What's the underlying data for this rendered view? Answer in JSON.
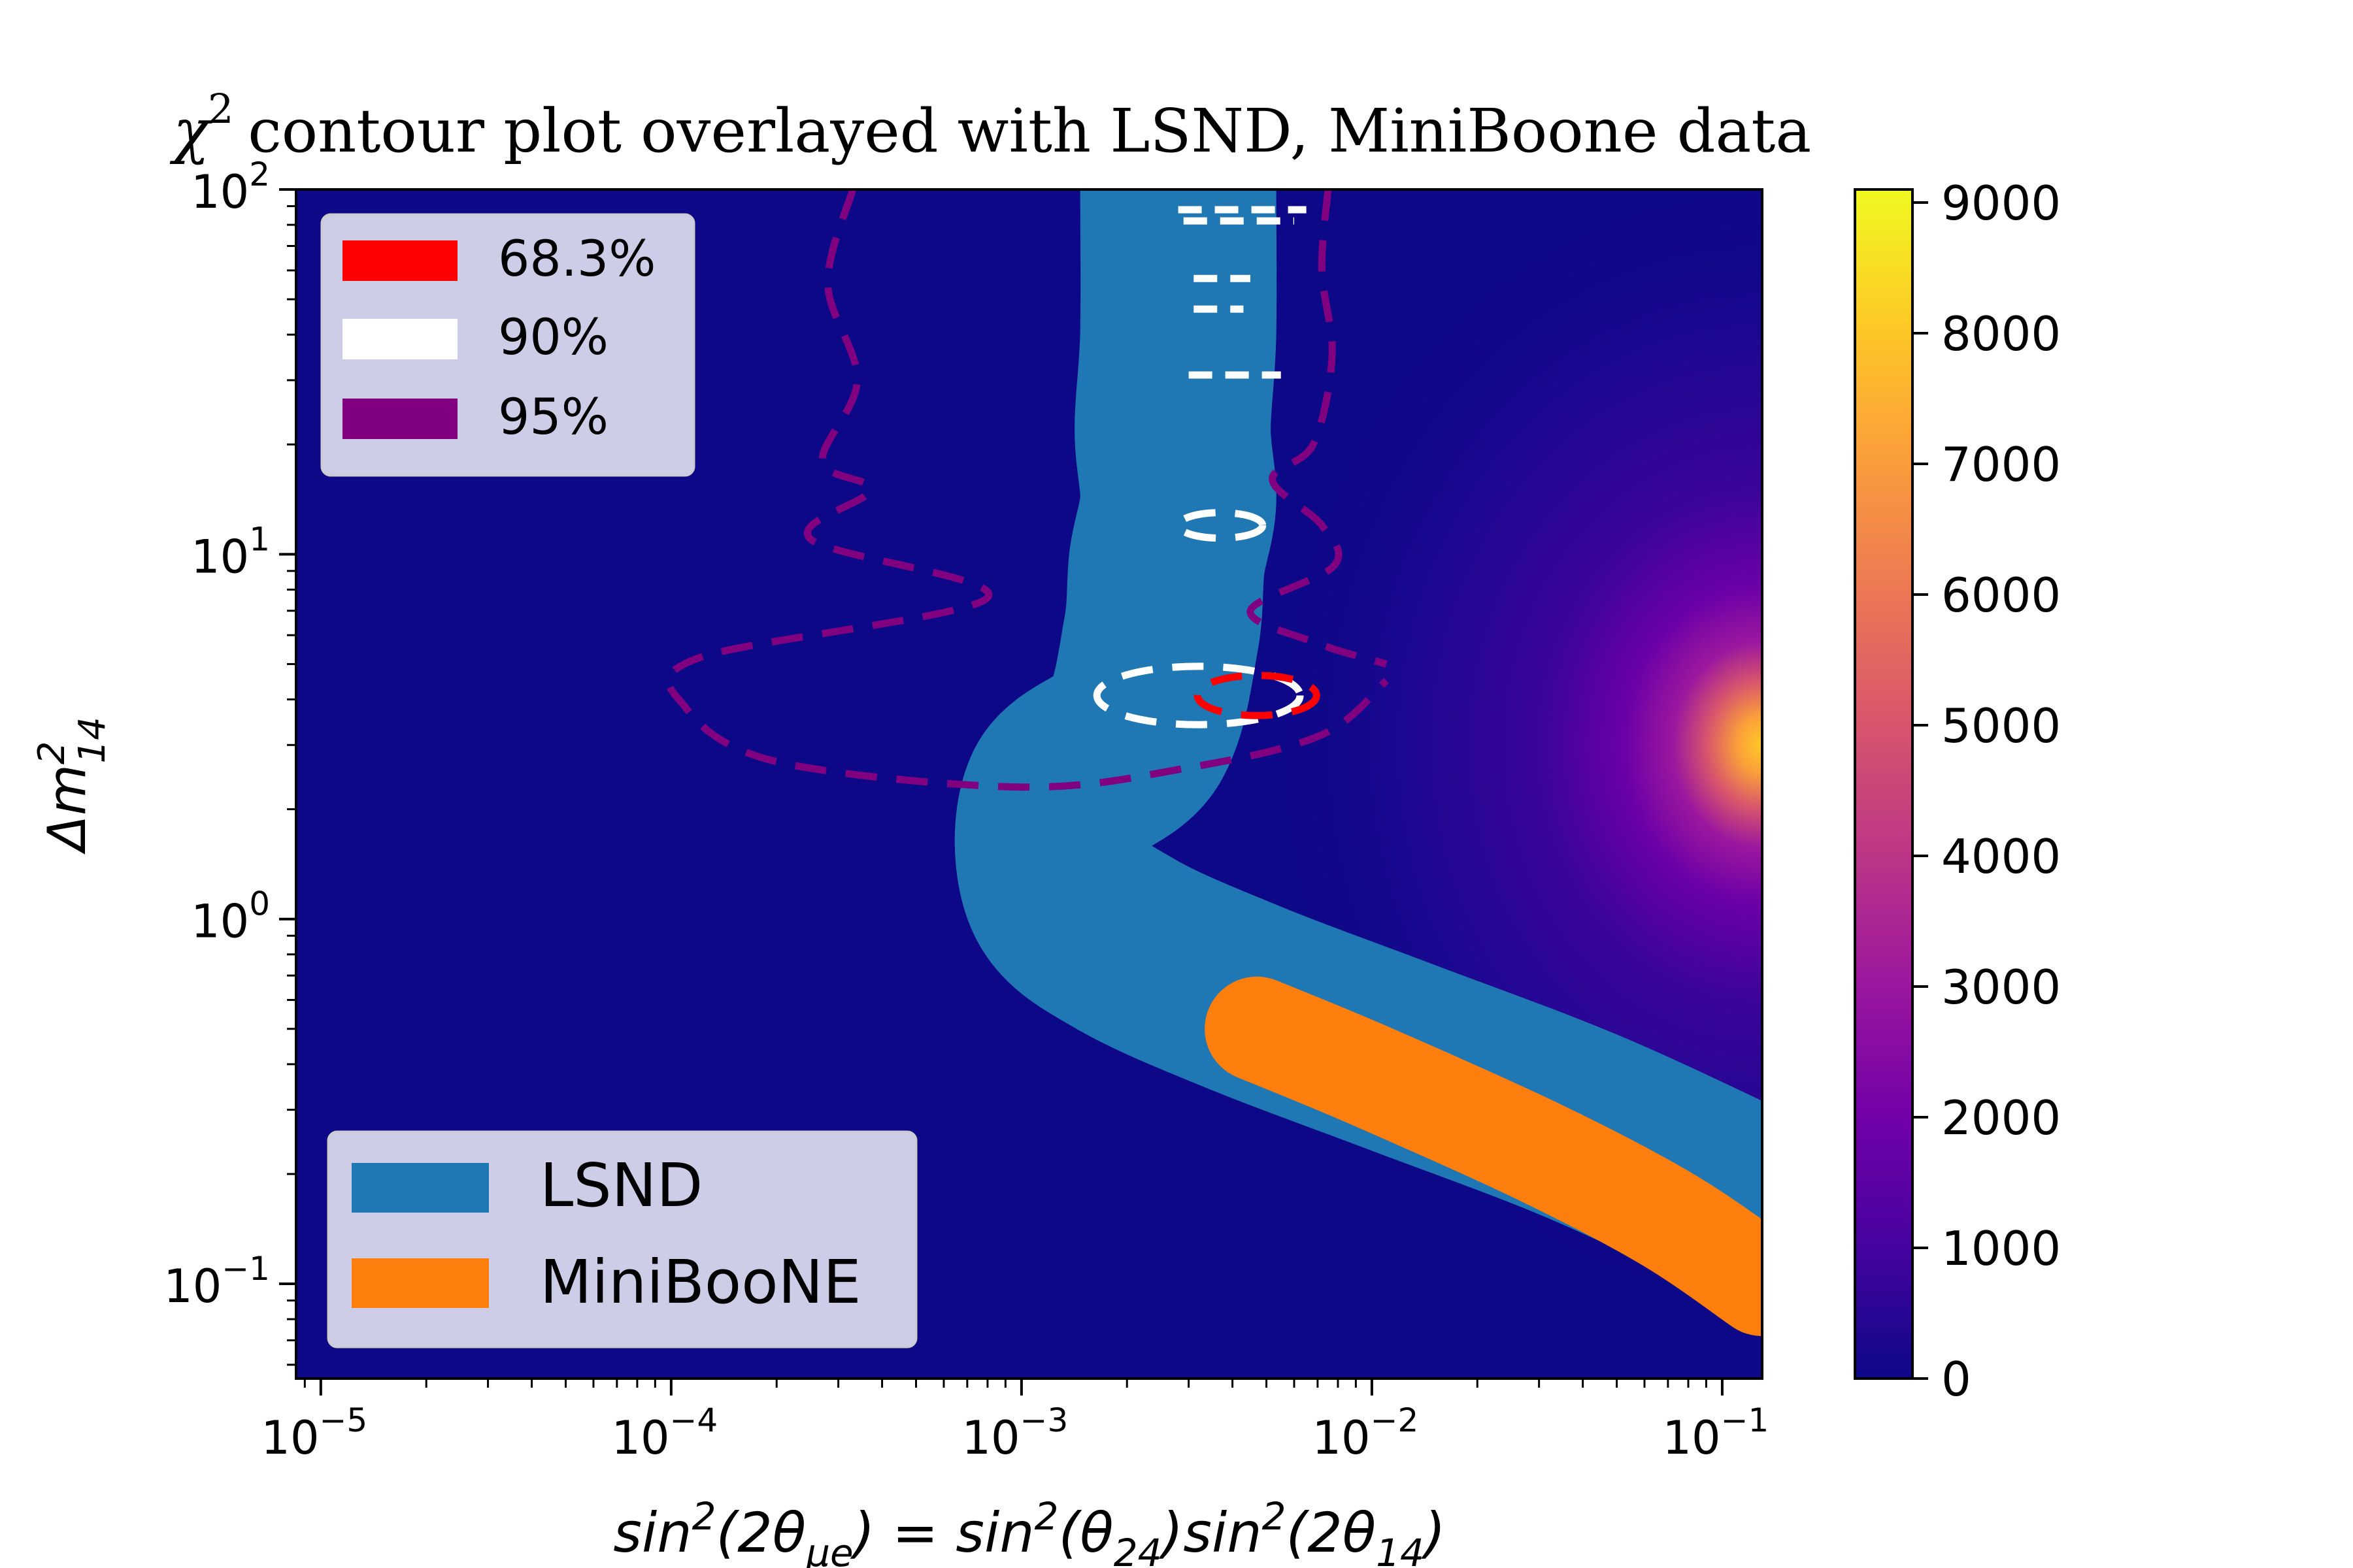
{
  "chart_data": {
    "type": "heatmap",
    "title": {
      "symbol": "χ",
      "sup": "2",
      "text": " contour plot overlayed with LSND, MiniBoone data"
    },
    "xlabel": {
      "parts": [
        {
          "t": "sin",
          "s": "n"
        },
        {
          "t": "2",
          "s": "sup"
        },
        {
          "t": "(2θ",
          "s": "n"
        },
        {
          "t": "μe",
          "s": "sub"
        },
        {
          "t": ") = sin",
          "s": "n"
        },
        {
          "t": "2",
          "s": "sup"
        },
        {
          "t": "(θ",
          "s": "n"
        },
        {
          "t": "24",
          "s": "sub"
        },
        {
          "t": ")sin",
          "s": "n"
        },
        {
          "t": "2",
          "s": "sup"
        },
        {
          "t": "(2θ",
          "s": "n"
        },
        {
          "t": "14",
          "s": "sub"
        },
        {
          "t": ")",
          "s": "n"
        }
      ]
    },
    "ylabel": {
      "base": "Δm",
      "sup": "2",
      "sub": "14"
    },
    "x_scale": "log",
    "y_scale": "log",
    "xlim": [
      8.5e-06,
      0.13
    ],
    "ylim": [
      0.055,
      100
    ],
    "x_ticks": [
      {
        "value": 1e-05,
        "base": "10",
        "exp": "−5"
      },
      {
        "value": 0.0001,
        "base": "10",
        "exp": "−4"
      },
      {
        "value": 0.001,
        "base": "10",
        "exp": "−3"
      },
      {
        "value": 0.01,
        "base": "10",
        "exp": "−2"
      },
      {
        "value": 0.1,
        "base": "10",
        "exp": "−1"
      }
    ],
    "y_ticks": [
      {
        "value": 0.1,
        "base": "10",
        "exp": "−1"
      },
      {
        "value": 1,
        "base": "10",
        "exp": "0"
      },
      {
        "value": 10,
        "base": "10",
        "exp": "1"
      },
      {
        "value": 100,
        "base": "10",
        "exp": "2"
      }
    ],
    "heatmap": {
      "colormap": "plasma",
      "background_value": 0,
      "peak": {
        "x": 0.13,
        "y": 3.0,
        "value": 9000
      }
    },
    "colorbar": {
      "range": [
        0,
        9100
      ],
      "ticks": [
        "0",
        "1000",
        "2000",
        "3000",
        "4000",
        "5000",
        "6000",
        "7000",
        "8000",
        "9000"
      ],
      "colors": [
        "#0d0887",
        "#46039f",
        "#7201a8",
        "#9c179e",
        "#bd3786",
        "#d8576b",
        "#ed7953",
        "#fb9f3a",
        "#fdca26",
        "#f0f921"
      ]
    },
    "contour_legend": [
      {
        "label": "68.3%",
        "color": "#ff0000"
      },
      {
        "label": "90%",
        "color": "#ffffff"
      },
      {
        "label": "95%",
        "color": "#800080"
      }
    ],
    "region_legend": [
      {
        "label": "LSND",
        "color": "#1f77b4"
      },
      {
        "label": "MiniBooNE",
        "color": "#ff7f0e"
      }
    ],
    "lsnd_band": [
      {
        "x": 0.0028,
        "y": 100
      },
      {
        "x": 0.0028,
        "y": 40
      },
      {
        "x": 0.0027,
        "y": 22
      },
      {
        "x": 0.0028,
        "y": 14
      },
      {
        "x": 0.0026,
        "y": 9.5
      },
      {
        "x": 0.0025,
        "y": 6.0
      },
      {
        "x": 0.0021,
        "y": 3.2
      },
      {
        "x": 0.0013,
        "y": 2.2
      },
      {
        "x": 0.0013,
        "y": 1.2
      },
      {
        "x": 0.002,
        "y": 0.85
      },
      {
        "x": 0.0045,
        "y": 0.6
      },
      {
        "x": 0.012,
        "y": 0.42
      },
      {
        "x": 0.04,
        "y": 0.27
      },
      {
        "x": 0.13,
        "y": 0.16
      }
    ],
    "miniboone_band": [
      {
        "x": 0.0047,
        "y": 0.5
      },
      {
        "x": 0.01,
        "y": 0.37
      },
      {
        "x": 0.03,
        "y": 0.23
      },
      {
        "x": 0.07,
        "y": 0.15
      },
      {
        "x": 0.13,
        "y": 0.1
      }
    ],
    "contours": {
      "cl683": {
        "cx": 0.0047,
        "cy": 4.1,
        "rx_dec": 0.17,
        "ry_dec": 0.055
      },
      "cl90_ellipse": {
        "cx": 0.0032,
        "cy": 4.1,
        "rx_dec": 0.29,
        "ry_dec": 0.08
      },
      "cl90_small_ellipse": {
        "cx": 0.0037,
        "cy": 12,
        "rx_dec": 0.12,
        "ry_dec": 0.035
      },
      "cl90_dashes": [
        {
          "x1": 0.0028,
          "x2": 0.0065,
          "y": 88
        },
        {
          "x1": 0.0029,
          "x2": 0.006,
          "y": 82
        },
        {
          "x1": 0.0031,
          "x2": 0.0045,
          "y": 57
        },
        {
          "x1": 0.0031,
          "x2": 0.0043,
          "y": 47
        },
        {
          "x1": 0.003,
          "x2": 0.0055,
          "y": 31
        }
      ],
      "cl95_left": [
        {
          "x": 0.00033,
          "y": 100
        },
        {
          "x": 0.00028,
          "y": 55
        },
        {
          "x": 0.00034,
          "y": 30
        },
        {
          "x": 0.00027,
          "y": 18
        },
        {
          "x": 0.00037,
          "y": 15
        },
        {
          "x": 0.00025,
          "y": 11
        },
        {
          "x": 0.0008,
          "y": 7.6
        },
        {
          "x": 0.00012,
          "y": 5.2
        },
        {
          "x": 0.00011,
          "y": 3.8
        },
        {
          "x": 0.0002,
          "y": 2.7
        },
        {
          "x": 0.001,
          "y": 2.3
        },
        {
          "x": 0.003,
          "y": 2.6
        },
        {
          "x": 0.0072,
          "y": 3.2
        },
        {
          "x": 0.011,
          "y": 4.5
        }
      ],
      "cl95_right": [
        {
          "x": 0.0075,
          "y": 100
        },
        {
          "x": 0.0072,
          "y": 60
        },
        {
          "x": 0.0077,
          "y": 35
        },
        {
          "x": 0.0068,
          "y": 20
        },
        {
          "x": 0.0052,
          "y": 16
        },
        {
          "x": 0.0072,
          "y": 12
        },
        {
          "x": 0.0078,
          "y": 9.3
        },
        {
          "x": 0.0045,
          "y": 7.0
        },
        {
          "x": 0.007,
          "y": 5.7
        },
        {
          "x": 0.011,
          "y": 5.0
        }
      ]
    }
  }
}
